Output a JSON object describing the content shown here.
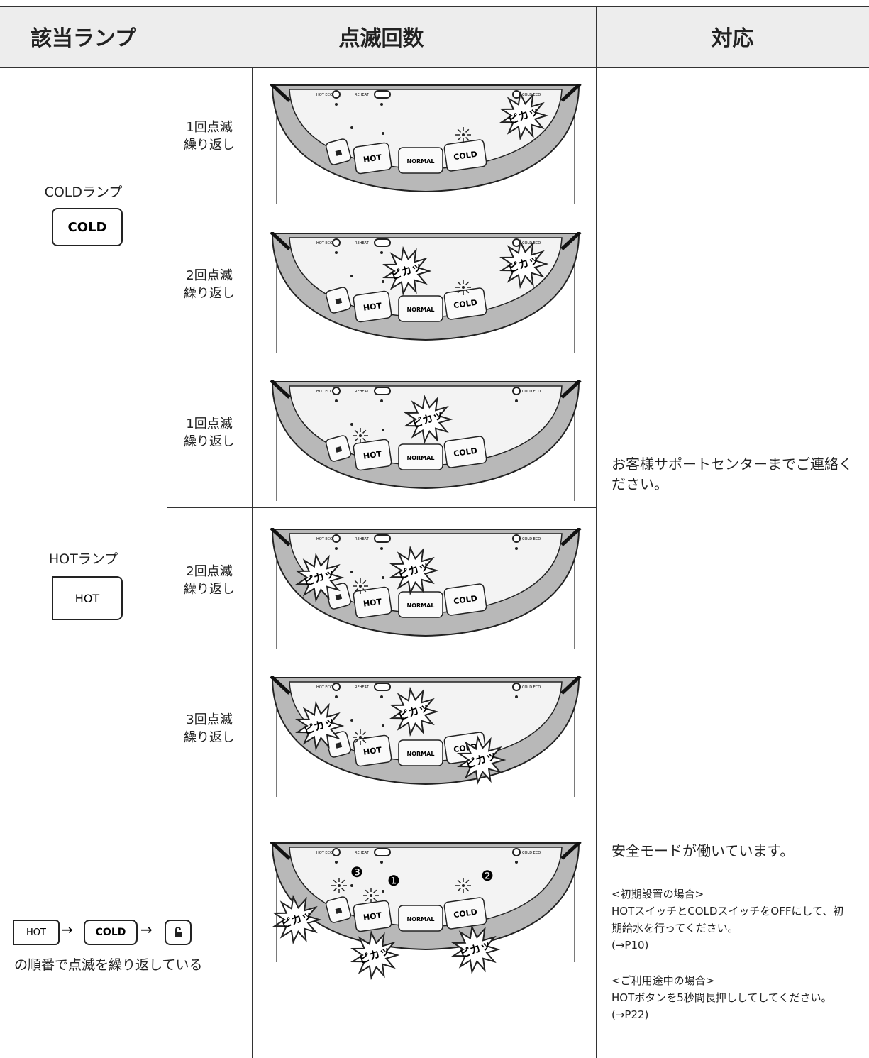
{
  "header": {
    "lamp": "該当ランプ",
    "blink": "点滅回数",
    "action": "対応"
  },
  "rows": [
    {
      "lamp": "COLDランプ",
      "button": "COLD",
      "patterns": [
        [
          "1回点滅",
          "繰り返し"
        ],
        [
          "2回点滅",
          "繰り返し"
        ]
      ]
    },
    {
      "lamp": "HOTランプ",
      "button": "HOT",
      "patterns": [
        [
          "1回点滅",
          "繰り返し"
        ],
        [
          "2回点滅",
          "繰り返し"
        ],
        [
          "3回点滅",
          "繰り返し"
        ]
      ]
    }
  ],
  "action": "お客様サポートセンターまでご連絡ください。",
  "sequence": {
    "buttons": [
      "HOT",
      "COLD"
    ],
    "arrow": "→",
    "text": "の順番で点滅を繰り返している"
  },
  "safe_mode": {
    "title": "安全モードが働いています。",
    "initial": {
      "heading": "<初期設置の場合>",
      "body": "HOTスイッチとCOLDスイッチをOFFにして、初期給水を行ってください。",
      "ref": "(→P10)"
    },
    "in_use": {
      "heading": "<ご利用途中の場合>",
      "body": "HOTボタンを5秒間長押ししてしてください。(→P22)"
    }
  },
  "panel": {
    "hot_eco": "HOT ECO",
    "reheat": "REHEAT",
    "cold_eco": "COLD ECO",
    "hot": "HOT",
    "normal": "NORMAL",
    "cold": "COLD",
    "flash": "ピカッ",
    "markers": [
      "❶",
      "❷",
      "❸"
    ]
  }
}
